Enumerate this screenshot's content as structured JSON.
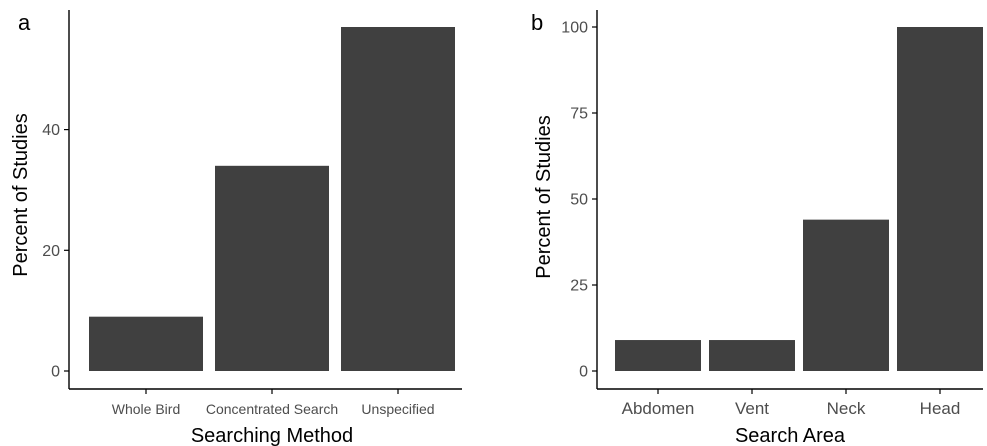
{
  "colors": {
    "bar": "#404040",
    "axis": "#000000",
    "tick_text": "#4d4d4d"
  },
  "chart_data": [
    {
      "panel": "a",
      "type": "bar",
      "categories": [
        "Whole Bird",
        "Concentrated Search",
        "Unspecified"
      ],
      "values": [
        9,
        34,
        57
      ],
      "xlabel": "Searching Method",
      "ylabel": "Percent of Studies",
      "yticks": [
        0,
        20,
        40
      ],
      "ylim": [
        0,
        60
      ],
      "grid": false
    },
    {
      "panel": "b",
      "type": "bar",
      "categories": [
        "Abdomen",
        "Vent",
        "Neck",
        "Head"
      ],
      "values": [
        9,
        9,
        44,
        100
      ],
      "xlabel": "Search Area",
      "ylabel": "Percent of Studies",
      "yticks": [
        0,
        25,
        50,
        75,
        100
      ],
      "ylim": [
        0,
        105
      ],
      "grid": false
    }
  ]
}
